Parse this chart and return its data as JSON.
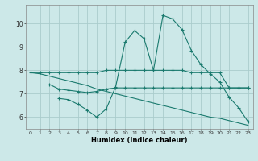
{
  "title": "",
  "xlabel": "Humidex (Indice chaleur)",
  "background_color": "#cce8e8",
  "grid_color": "#aacccc",
  "line_color": "#1a7a6e",
  "xlim": [
    -0.5,
    23.5
  ],
  "ylim": [
    5.5,
    10.8
  ],
  "xticks": [
    0,
    1,
    2,
    3,
    4,
    5,
    6,
    7,
    8,
    9,
    10,
    11,
    12,
    13,
    14,
    15,
    16,
    17,
    18,
    19,
    20,
    21,
    22,
    23
  ],
  "yticks": [
    6,
    7,
    8,
    9,
    10
  ],
  "line1_x": [
    0,
    1,
    2,
    3,
    4,
    5,
    6,
    7,
    8,
    9,
    10,
    11,
    12,
    13,
    14,
    15,
    16,
    17,
    18,
    19,
    20,
    21,
    22,
    23
  ],
  "line1_y": [
    7.9,
    7.9,
    7.9,
    7.9,
    7.9,
    7.9,
    7.9,
    7.9,
    8.0,
    8.0,
    8.0,
    8.0,
    8.0,
    8.0,
    8.0,
    8.0,
    8.0,
    7.9,
    7.9,
    7.9,
    7.9,
    7.25,
    7.25,
    7.25
  ],
  "line2_x": [
    2,
    3,
    4,
    5,
    6,
    7,
    8,
    9,
    10,
    11,
    12,
    13,
    14,
    15,
    16,
    17,
    18,
    19,
    20,
    21,
    22,
    23
  ],
  "line2_y": [
    7.4,
    7.2,
    7.15,
    7.1,
    7.05,
    7.1,
    7.2,
    7.25,
    7.25,
    7.25,
    7.25,
    7.25,
    7.25,
    7.25,
    7.25,
    7.25,
    7.25,
    7.25,
    7.25,
    7.25,
    7.25,
    7.25
  ],
  "line3_x": [
    3,
    4,
    5,
    6,
    7,
    8,
    9,
    10,
    11,
    12,
    13,
    14,
    15,
    16,
    17,
    18,
    19,
    20,
    21,
    22,
    23
  ],
  "line3_y": [
    6.8,
    6.75,
    6.55,
    6.3,
    6.0,
    6.35,
    7.3,
    9.2,
    9.7,
    9.35,
    8.0,
    10.35,
    10.2,
    9.75,
    8.85,
    8.25,
    7.85,
    7.5,
    6.85,
    6.4,
    5.8
  ],
  "line4_x": [
    0,
    1,
    2,
    3,
    4,
    5,
    6,
    7,
    8,
    9,
    10,
    11,
    12,
    13,
    14,
    15,
    16,
    17,
    18,
    19,
    20,
    21,
    22,
    23
  ],
  "line4_y": [
    7.9,
    7.85,
    7.75,
    7.65,
    7.55,
    7.45,
    7.35,
    7.2,
    7.1,
    7.0,
    6.9,
    6.8,
    6.7,
    6.6,
    6.5,
    6.4,
    6.3,
    6.2,
    6.1,
    6.0,
    5.95,
    5.85,
    5.75,
    5.65
  ]
}
